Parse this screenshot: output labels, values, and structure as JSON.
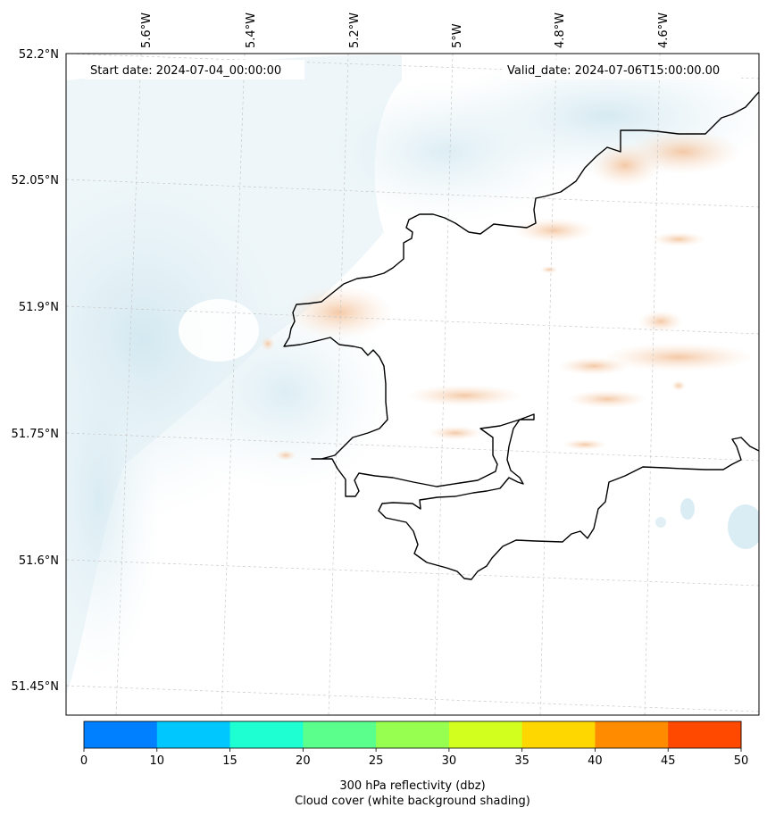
{
  "header": {
    "start_date_label": "Start date: 2024-07-04_00:00:00",
    "valid_date_label": "Valid_date: 2024-07-06T15:00:00.00"
  },
  "map": {
    "lat_ticks": [
      "52.2°N",
      "52.05°N",
      "51.9°N",
      "51.75°N",
      "51.6°N",
      "51.45°N"
    ],
    "lon_ticks": [
      "5.6°W",
      "5.4°W",
      "5.2°W",
      "5°W",
      "4.8°W",
      "4.6°W"
    ],
    "colors": {
      "coastline": "#000000",
      "cloud_shading": "#d9ecf3",
      "reflectivity_low": "#f6c9a5",
      "gridline": "#bbbbbb"
    }
  },
  "colorbar": {
    "ticks": [
      "0",
      "10",
      "15",
      "20",
      "25",
      "30",
      "35",
      "40",
      "45",
      "50"
    ],
    "colors": [
      "#0080ff",
      "#00c8ff",
      "#1effd2",
      "#5aff8c",
      "#96ff50",
      "#d2ff1e",
      "#ffd700",
      "#ff8c00",
      "#ff4800"
    ],
    "label_line1": "300 hPa reflectivity (dbz)",
    "label_line2": "Cloud cover (white background shading)"
  }
}
